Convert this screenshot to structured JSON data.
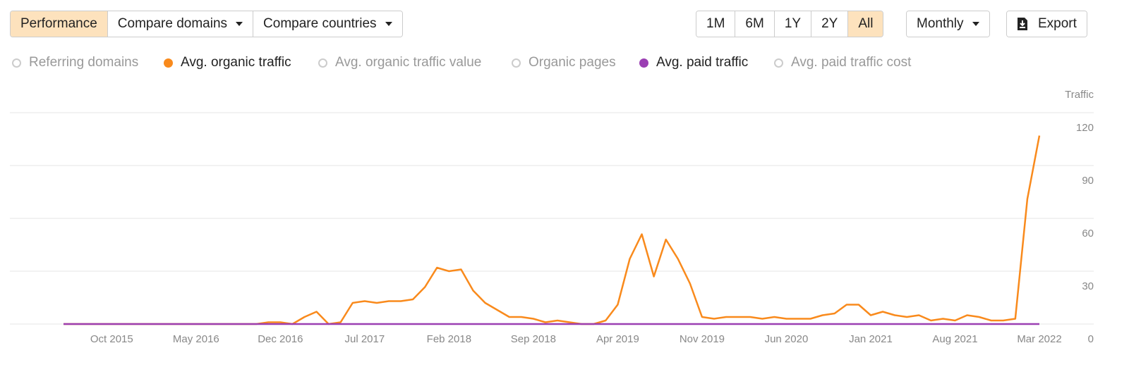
{
  "toolbar": {
    "tabs": [
      "Performance",
      "Compare domains",
      "Compare countries"
    ],
    "ranges": [
      "1M",
      "6M",
      "1Y",
      "2Y",
      "All"
    ],
    "interval": "Monthly",
    "export": "Export"
  },
  "inactive_metrics": [
    "Referring domains",
    "Avg. organic traffic value",
    "Organic pages",
    "Avg. paid traffic cost"
  ],
  "chart_data": {
    "type": "line",
    "y_label": "Traffic",
    "categories": [
      null,
      null,
      null,
      null,
      "Oct 2015",
      null,
      null,
      null,
      null,
      null,
      null,
      "May 2016",
      null,
      null,
      null,
      null,
      null,
      null,
      "Dec 2016",
      null,
      null,
      null,
      null,
      null,
      null,
      "Jul 2017",
      null,
      null,
      null,
      null,
      null,
      null,
      "Feb 2018",
      null,
      null,
      null,
      null,
      null,
      null,
      "Sep 2018",
      null,
      null,
      null,
      null,
      null,
      null,
      "Apr 2019",
      null,
      null,
      null,
      null,
      null,
      null,
      "Nov 2019",
      null,
      null,
      null,
      null,
      null,
      null,
      "Jun 2020",
      null,
      null,
      null,
      null,
      null,
      null,
      "Jan 2021",
      null,
      null,
      null,
      null,
      null,
      null,
      "Aug 2021",
      null,
      null,
      null,
      null,
      null,
      null,
      "Mar 2022"
    ],
    "series": [
      {
        "name": "Avg. organic traffic",
        "color": "#f98a1c",
        "values": [
          0,
          0,
          0,
          0,
          0,
          0,
          0,
          0,
          0,
          0,
          0,
          0,
          0,
          0,
          0,
          0,
          0,
          1,
          1,
          0,
          4,
          7,
          0,
          1,
          12,
          13,
          12,
          13,
          13,
          14,
          21,
          32,
          30,
          31,
          19,
          12,
          8,
          4,
          4,
          3,
          1,
          2,
          1,
          0,
          0,
          2,
          11,
          37,
          51,
          27,
          48,
          37,
          23,
          4,
          3,
          4,
          4,
          4,
          3,
          4,
          3,
          3,
          3,
          5,
          6,
          11,
          11,
          5,
          7,
          5,
          4,
          5,
          2,
          3,
          2,
          5,
          4,
          2,
          2,
          3,
          71,
          107
        ]
      },
      {
        "name": "Avg. paid traffic",
        "color": "#9b3fb3",
        "values": [
          0,
          0,
          0,
          0,
          0,
          0,
          0,
          0,
          0,
          0,
          0,
          0,
          0,
          0,
          0,
          0,
          0,
          0,
          0,
          0,
          0,
          0,
          0,
          0,
          0,
          0,
          0,
          0,
          0,
          0,
          0,
          0,
          0,
          0,
          0,
          0,
          0,
          0,
          0,
          0,
          0,
          0,
          0,
          0,
          0,
          0,
          0,
          0,
          0,
          0,
          0,
          0,
          0,
          0,
          0,
          0,
          0,
          0,
          0,
          0,
          0,
          0,
          0,
          0,
          0,
          0,
          0,
          0,
          0,
          0,
          0,
          0,
          0,
          0,
          0,
          0,
          0,
          0,
          0,
          0,
          0,
          0
        ]
      }
    ],
    "ylim": [
      0,
      120
    ],
    "yticks": [
      0,
      30,
      60,
      90,
      120
    ],
    "grid": true
  }
}
